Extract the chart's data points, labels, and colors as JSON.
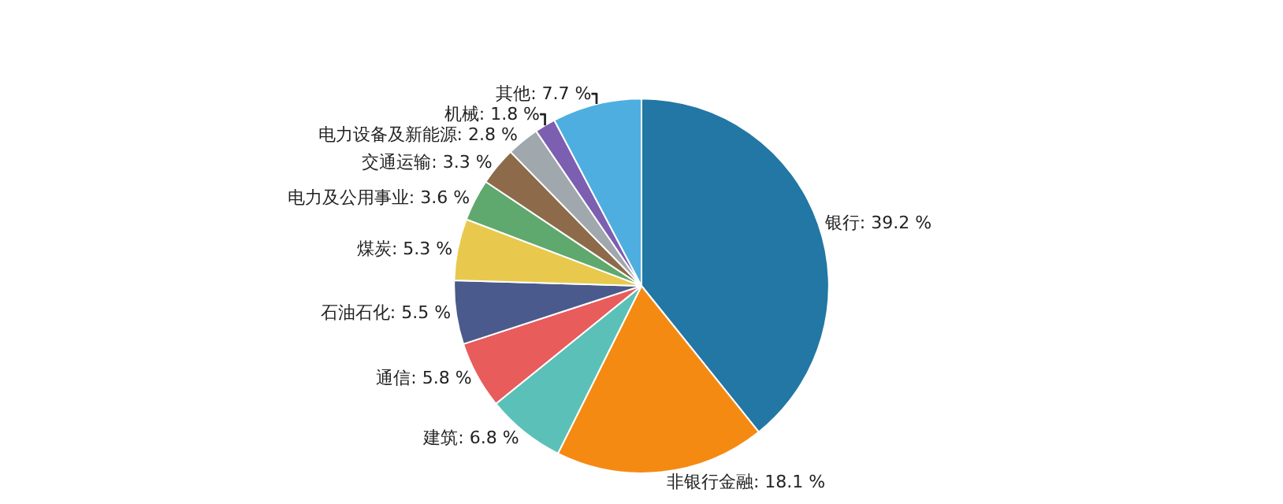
{
  "chart_data": {
    "type": "pie",
    "categories": [
      "银行",
      "非银行金融",
      "建筑",
      "通信",
      "石油石化",
      "煤炭",
      "电力及公用事业",
      "交通运输",
      "电力设备及新能源",
      "机械",
      "其他"
    ],
    "values": [
      39.2,
      18.1,
      6.8,
      5.8,
      5.5,
      5.3,
      3.6,
      3.3,
      2.8,
      1.8,
      7.7
    ],
    "value_labels": [
      "39.2 %",
      "18.1 %",
      "6.8 %",
      "5.8 %",
      "5.5 %",
      "5.3 %",
      "3.6 %",
      "3.3 %",
      "2.8 %",
      "1.8 %",
      "7.7 %"
    ],
    "colors": [
      "#2277a4",
      "#f58a13",
      "#5bc0b8",
      "#e85c5c",
      "#4a5a8c",
      "#e8c94d",
      "#5fa86e",
      "#8c6a4a",
      "#a0a8ad",
      "#7c5fb0",
      "#4faee0"
    ]
  }
}
